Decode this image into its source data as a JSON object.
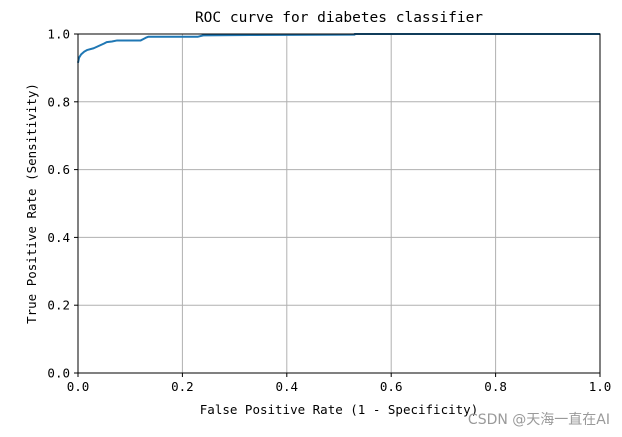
{
  "chart_data": {
    "type": "line",
    "title": "ROC curve for diabetes classifier",
    "xlabel": "False Positive Rate (1 - Specificity)",
    "ylabel": "True Positive Rate (Sensitivity)",
    "xlim": [
      0.0,
      1.0
    ],
    "ylim": [
      0.0,
      1.0
    ],
    "x_ticks": [
      "0.0",
      "0.2",
      "0.4",
      "0.6",
      "0.8",
      "1.0"
    ],
    "y_ticks": [
      "0.0",
      "0.2",
      "0.4",
      "0.6",
      "0.8",
      "1.0"
    ],
    "grid": true,
    "legend": "none",
    "series": [
      {
        "color": "#1f77b4",
        "points": [
          [
            0.0,
            0.915
          ],
          [
            0.002,
            0.93
          ],
          [
            0.006,
            0.94
          ],
          [
            0.012,
            0.948
          ],
          [
            0.018,
            0.953
          ],
          [
            0.03,
            0.958
          ],
          [
            0.04,
            0.965
          ],
          [
            0.05,
            0.972
          ],
          [
            0.055,
            0.976
          ],
          [
            0.065,
            0.978
          ],
          [
            0.075,
            0.981
          ],
          [
            0.12,
            0.981
          ],
          [
            0.125,
            0.985
          ],
          [
            0.13,
            0.989
          ],
          [
            0.135,
            0.992
          ],
          [
            0.23,
            0.992
          ],
          [
            0.24,
            0.996
          ],
          [
            0.33,
            0.997
          ],
          [
            0.53,
            0.998
          ],
          [
            0.53,
            1.0
          ],
          [
            1.0,
            1.0
          ]
        ]
      }
    ]
  },
  "watermark": "CSDN @天海一直在AI"
}
